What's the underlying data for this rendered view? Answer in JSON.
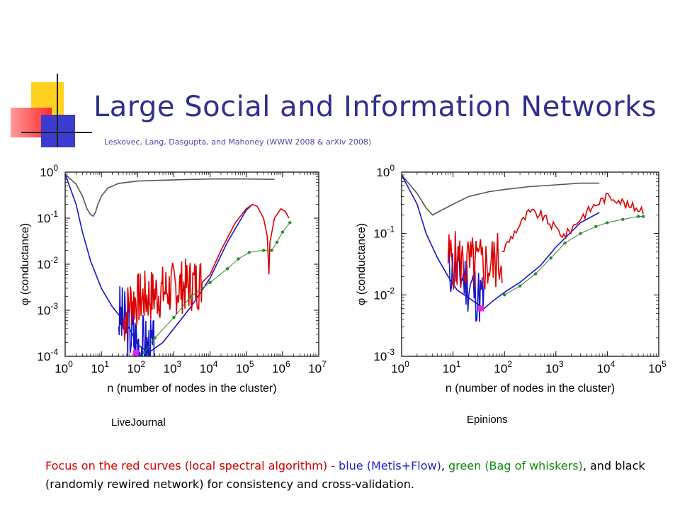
{
  "slide": {
    "title": "Large Social and Information Networks",
    "subtitle": "Leskovec, Lang, Dasgupta, and Mahoney (WWW 2008 & arXiv 2008)",
    "caption": {
      "part1": "Focus on the red curves (local spectral algorithm) - ",
      "part2": "blue (Metis+Flow)",
      "part3": ", ",
      "part4": "green (Bag of whiskers)",
      "part5": ", and black (randomly rewired network) for consistency and cross-validation."
    },
    "colors": {
      "title": "#2f2f8f",
      "red": "#dd0000",
      "blue": "#1515cc",
      "green": "#2a8a2a",
      "black": "#555555",
      "magenta": "#ee22dd"
    }
  },
  "chart_data": [
    {
      "type": "line",
      "network_label": "LiveJournal",
      "xlabel": "n (number of nodes in the cluster)",
      "ylabel": "φ (conductance)",
      "x_scale": "log",
      "y_scale": "log",
      "xlim": [
        1,
        10000000
      ],
      "ylim": [
        0.0001,
        1
      ],
      "x_ticks": [
        {
          "base": "10",
          "exp": "0"
        },
        {
          "base": "10",
          "exp": "1"
        },
        {
          "base": "10",
          "exp": "2"
        },
        {
          "base": "10",
          "exp": "3"
        },
        {
          "base": "10",
          "exp": "4"
        },
        {
          "base": "10",
          "exp": "5"
        },
        {
          "base": "10",
          "exp": "6"
        },
        {
          "base": "10",
          "exp": "7"
        }
      ],
      "y_ticks": [
        {
          "base": "10",
          "exp": "0"
        },
        {
          "base": "10",
          "exp": "-1"
        },
        {
          "base": "10",
          "exp": "-2"
        },
        {
          "base": "10",
          "exp": "-3"
        },
        {
          "base": "10",
          "exp": "-4"
        }
      ],
      "series": [
        {
          "color": "#555555",
          "noise": 0,
          "points": [
            [
              1,
              0.9
            ],
            [
              2,
              0.55
            ],
            [
              3,
              0.3
            ],
            [
              4,
              0.16
            ],
            [
              5,
              0.12
            ],
            [
              6,
              0.11
            ],
            [
              7,
              0.14
            ],
            [
              8,
              0.2
            ],
            [
              10,
              0.3
            ],
            [
              15,
              0.45
            ],
            [
              30,
              0.57
            ],
            [
              100,
              0.64
            ],
            [
              1000,
              0.68
            ],
            [
              10000,
              0.71
            ],
            [
              100000,
              0.71
            ],
            [
              600000,
              0.7
            ]
          ]
        },
        {
          "color": "#1515cc",
          "noise": 0,
          "points": [
            [
              1,
              0.9
            ],
            [
              2,
              0.2
            ],
            [
              3,
              0.05
            ],
            [
              5,
              0.012
            ],
            [
              10,
              0.003
            ],
            [
              20,
              0.0012
            ],
            [
              40,
              0.0006
            ],
            [
              60,
              0.0004
            ],
            [
              100,
              0.00018
            ],
            [
              200,
              0.00012
            ],
            [
              500,
              0.0002
            ],
            [
              1000,
              0.0004
            ],
            [
              3000,
              0.0012
            ],
            [
              10000,
              0.005
            ],
            [
              30000,
              0.03
            ],
            [
              100000,
              0.15
            ],
            [
              150000,
              0.2
            ]
          ]
        },
        {
          "color": "#1515cc",
          "noise": 0.75,
          "seed": 3,
          "n": 60,
          "range": [
            30,
            300
          ],
          "trend": [
            [
              30,
              0.0008
            ],
            [
              60,
              0.0004
            ],
            [
              100,
              0.0002
            ],
            [
              300,
              0.00012
            ]
          ]
        },
        {
          "color": "#dd0000",
          "noise": 0.6,
          "seed": 7,
          "n": 120,
          "range": [
            40,
            6000
          ],
          "trend": [
            [
              40,
              0.0005
            ],
            [
              60,
              0.0015
            ],
            [
              200,
              0.002
            ],
            [
              1000,
              0.003
            ],
            [
              6000,
              0.004
            ]
          ]
        },
        {
          "color": "#dd0000",
          "noise": 0,
          "points": [
            [
              6000,
              0.004
            ],
            [
              10000,
              0.006
            ],
            [
              20000,
              0.02
            ],
            [
              50000,
              0.08
            ],
            [
              100000,
              0.16
            ],
            [
              150000,
              0.2
            ],
            [
              200000,
              0.18
            ],
            [
              300000,
              0.1
            ],
            [
              380000,
              0.04
            ],
            [
              420000,
              0.006
            ],
            [
              450000,
              0.03
            ],
            [
              600000,
              0.1
            ],
            [
              900000,
              0.16
            ],
            [
              1200000,
              0.14
            ],
            [
              1500000,
              0.1
            ]
          ]
        },
        {
          "color": "#2a8a2a",
          "noise": 0,
          "dots": true,
          "points": [
            [
              150,
              0.00012
            ],
            [
              300,
              0.00025
            ],
            [
              1000,
              0.0007
            ],
            [
              3000,
              0.002
            ],
            [
              10000,
              0.004
            ],
            [
              30000,
              0.008
            ],
            [
              60000,
              0.013
            ],
            [
              120000,
              0.018
            ],
            [
              300000,
              0.02
            ],
            [
              500000,
              0.02
            ],
            [
              700000,
              0.03
            ],
            [
              1000000,
              0.05
            ],
            [
              1600000,
              0.08
            ]
          ]
        }
      ],
      "marker": {
        "x": 90,
        "y": 0.00012
      }
    },
    {
      "type": "line",
      "network_label": "Epinions",
      "xlabel": "n (number of nodes in the cluster)",
      "ylabel": "φ (conductance)",
      "x_scale": "log",
      "y_scale": "log",
      "xlim": [
        1,
        100000
      ],
      "ylim": [
        0.001,
        1
      ],
      "x_ticks": [
        {
          "base": "10",
          "exp": "0"
        },
        {
          "base": "10",
          "exp": "1"
        },
        {
          "base": "10",
          "exp": "2"
        },
        {
          "base": "10",
          "exp": "3"
        },
        {
          "base": "10",
          "exp": "4"
        },
        {
          "base": "10",
          "exp": "5"
        }
      ],
      "y_ticks": [
        {
          "base": "10",
          "exp": "0"
        },
        {
          "base": "10",
          "exp": "-1"
        },
        {
          "base": "10",
          "exp": "-2"
        },
        {
          "base": "10",
          "exp": "-3"
        }
      ],
      "series": [
        {
          "color": "#555555",
          "noise": 0,
          "points": [
            [
              1,
              0.9
            ],
            [
              2,
              0.45
            ],
            [
              3,
              0.26
            ],
            [
              4,
              0.2
            ],
            [
              6,
              0.24
            ],
            [
              10,
              0.3
            ],
            [
              20,
              0.4
            ],
            [
              50,
              0.48
            ],
            [
              100,
              0.52
            ],
            [
              300,
              0.58
            ],
            [
              1000,
              0.62
            ],
            [
              3000,
              0.66
            ],
            [
              7000,
              0.66
            ]
          ]
        },
        {
          "color": "#1515cc",
          "noise": 0,
          "points": [
            [
              1,
              0.9
            ],
            [
              2,
              0.3
            ],
            [
              3,
              0.1
            ],
            [
              5,
              0.04
            ],
            [
              8,
              0.02
            ],
            [
              12,
              0.012
            ],
            [
              20,
              0.009
            ],
            [
              40,
              0.006
            ],
            [
              60,
              0.008
            ],
            [
              100,
              0.011
            ],
            [
              200,
              0.016
            ],
            [
              500,
              0.03
            ],
            [
              1000,
              0.06
            ],
            [
              3000,
              0.15
            ],
            [
              7000,
              0.22
            ]
          ]
        },
        {
          "color": "#1515cc",
          "noise": 0.5,
          "seed": 11,
          "n": 40,
          "range": [
            8,
            40
          ],
          "trend": [
            [
              8,
              0.03
            ],
            [
              15,
              0.02
            ],
            [
              25,
              0.012
            ],
            [
              40,
              0.008
            ]
          ]
        },
        {
          "color": "#dd0000",
          "noise": 0.5,
          "seed": 5,
          "n": 60,
          "range": [
            8,
            90
          ],
          "trend": [
            [
              8,
              0.04
            ],
            [
              20,
              0.03
            ],
            [
              50,
              0.03
            ],
            [
              90,
              0.04
            ]
          ]
        },
        {
          "color": "#dd0000",
          "noise": 0.08,
          "seed": 9,
          "n": 80,
          "range": [
            90,
            50000
          ],
          "trend": [
            [
              90,
              0.05
            ],
            [
              150,
              0.1
            ],
            [
              300,
              0.22
            ],
            [
              500,
              0.2
            ],
            [
              1000,
              0.12
            ],
            [
              1500,
              0.09
            ],
            [
              3000,
              0.18
            ],
            [
              6000,
              0.3
            ],
            [
              10000,
              0.4
            ],
            [
              15000,
              0.38
            ],
            [
              25000,
              0.28
            ],
            [
              50000,
              0.25
            ]
          ]
        },
        {
          "color": "#2a8a2a",
          "noise": 0,
          "dots": true,
          "points": [
            [
              100,
              0.01
            ],
            [
              200,
              0.014
            ],
            [
              400,
              0.022
            ],
            [
              800,
              0.04
            ],
            [
              1500,
              0.07
            ],
            [
              3000,
              0.1
            ],
            [
              6000,
              0.13
            ],
            [
              10000,
              0.15
            ],
            [
              20000,
              0.17
            ],
            [
              40000,
              0.19
            ],
            [
              50000,
              0.19
            ]
          ]
        }
      ],
      "marker": {
        "x": 35,
        "y": 0.006
      }
    }
  ]
}
